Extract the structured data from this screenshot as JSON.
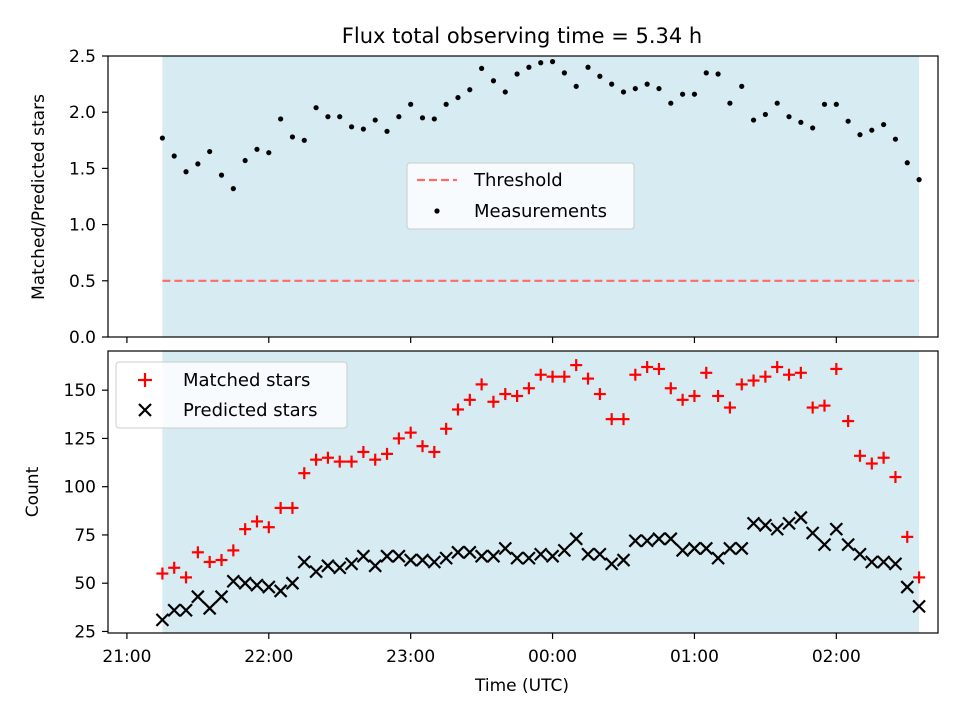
{
  "title": "Flux total observing time = 5.34 h",
  "colors": {
    "span": "#add8e6",
    "threshold": "#ff6b6b",
    "measurements": "#000000",
    "matched": "#ff0000",
    "predicted": "#000000"
  },
  "chart_data": [
    {
      "type": "scatter",
      "ylabel": "Matched/Predicted stars",
      "ylim": [
        0.0,
        2.5
      ],
      "yticks": [
        "0.0",
        "0.5",
        "1.0",
        "1.5",
        "2.0",
        "2.5"
      ],
      "threshold": 0.5,
      "legend_position": "center",
      "legend": [
        "Threshold",
        "Measurements"
      ],
      "series": [
        {
          "name": "Measurements",
          "x": [
            "21:15",
            "21:20",
            "21:25",
            "21:30",
            "21:35",
            "21:40",
            "21:45",
            "21:50",
            "21:55",
            "22:00",
            "22:05",
            "22:10",
            "22:15",
            "22:20",
            "22:25",
            "22:30",
            "22:35",
            "22:40",
            "22:45",
            "22:50",
            "22:55",
            "23:00",
            "23:05",
            "23:10",
            "23:15",
            "23:20",
            "23:25",
            "23:30",
            "23:35",
            "23:40",
            "23:45",
            "23:50",
            "23:55",
            "00:00",
            "00:05",
            "00:10",
            "00:15",
            "00:20",
            "00:25",
            "00:30",
            "00:35",
            "00:40",
            "00:45",
            "00:50",
            "00:55",
            "01:00",
            "01:05",
            "01:10",
            "01:15",
            "01:20",
            "01:25",
            "01:30",
            "01:35",
            "01:40",
            "01:45",
            "01:50",
            "01:55",
            "02:00",
            "02:05",
            "02:10",
            "02:15",
            "02:20",
            "02:25",
            "02:30",
            "02:35"
          ],
          "y": [
            1.77,
            1.61,
            1.47,
            1.54,
            1.65,
            1.44,
            1.32,
            1.57,
            1.67,
            1.64,
            1.94,
            1.78,
            1.75,
            2.04,
            1.96,
            1.96,
            1.87,
            1.85,
            1.93,
            1.83,
            1.96,
            2.07,
            1.95,
            1.94,
            2.07,
            2.13,
            2.2,
            2.39,
            2.28,
            2.18,
            2.34,
            2.4,
            2.44,
            2.45,
            2.35,
            2.23,
            2.4,
            2.32,
            2.25,
            2.18,
            2.21,
            2.25,
            2.21,
            2.08,
            2.16,
            2.16,
            2.35,
            2.34,
            2.08,
            2.23,
            1.93,
            1.98,
            2.08,
            1.96,
            1.91,
            1.86,
            2.07,
            2.07,
            1.92,
            1.8,
            1.84,
            1.89,
            1.76,
            1.55,
            1.4
          ]
        }
      ]
    },
    {
      "type": "scatter",
      "xlabel": "Time (UTC)",
      "ylabel": "Count",
      "ylim": [
        25,
        170
      ],
      "yticks": [
        "25",
        "50",
        "75",
        "100",
        "125",
        "150"
      ],
      "xticks": [
        "21:00",
        "22:00",
        "23:00",
        "00:00",
        "01:00",
        "02:00"
      ],
      "legend_position": "upper left",
      "legend": [
        "Matched stars",
        "Predicted stars"
      ],
      "observing_span": [
        "21:15",
        "02:35"
      ],
      "series": [
        {
          "name": "Matched stars",
          "x": [
            "21:15",
            "21:20",
            "21:25",
            "21:30",
            "21:35",
            "21:40",
            "21:45",
            "21:50",
            "21:55",
            "22:00",
            "22:05",
            "22:10",
            "22:15",
            "22:20",
            "22:25",
            "22:30",
            "22:35",
            "22:40",
            "22:45",
            "22:50",
            "22:55",
            "23:00",
            "23:05",
            "23:10",
            "23:15",
            "23:20",
            "23:25",
            "23:30",
            "23:35",
            "23:40",
            "23:45",
            "23:50",
            "23:55",
            "00:00",
            "00:05",
            "00:10",
            "00:15",
            "00:20",
            "00:25",
            "00:30",
            "00:35",
            "00:40",
            "00:45",
            "00:50",
            "00:55",
            "01:00",
            "01:05",
            "01:10",
            "01:15",
            "01:20",
            "01:25",
            "01:30",
            "01:35",
            "01:40",
            "01:45",
            "01:50",
            "01:55",
            "02:00",
            "02:05",
            "02:10",
            "02:15",
            "02:20",
            "02:25",
            "02:30",
            "02:35"
          ],
          "y": [
            55,
            58,
            53,
            66,
            61,
            62,
            67,
            78,
            82,
            79,
            89,
            89,
            107,
            114,
            115,
            113,
            113,
            118,
            114,
            117,
            125,
            128,
            121,
            118,
            130,
            140,
            145,
            153,
            144,
            148,
            147,
            151,
            158,
            157,
            157,
            163,
            156,
            148,
            135,
            135,
            158,
            162,
            161,
            151,
            145,
            147,
            159,
            147,
            141,
            153,
            155,
            157,
            162,
            158,
            159,
            141,
            142,
            161,
            134,
            116,
            112,
            115,
            105,
            74,
            53
          ]
        },
        {
          "name": "Predicted stars",
          "x": [
            "21:15",
            "21:20",
            "21:25",
            "21:30",
            "21:35",
            "21:40",
            "21:45",
            "21:50",
            "21:55",
            "22:00",
            "22:05",
            "22:10",
            "22:15",
            "22:20",
            "22:25",
            "22:30",
            "22:35",
            "22:40",
            "22:45",
            "22:50",
            "22:55",
            "23:00",
            "23:05",
            "23:10",
            "23:15",
            "23:20",
            "23:25",
            "23:30",
            "23:35",
            "23:40",
            "23:45",
            "23:50",
            "23:55",
            "00:00",
            "00:05",
            "00:10",
            "00:15",
            "00:20",
            "00:25",
            "00:30",
            "00:35",
            "00:40",
            "00:45",
            "00:50",
            "00:55",
            "01:00",
            "01:05",
            "01:10",
            "01:15",
            "01:20",
            "01:25",
            "01:30",
            "01:35",
            "01:40",
            "01:45",
            "01:50",
            "01:55",
            "02:00",
            "02:05",
            "02:10",
            "02:15",
            "02:20",
            "02:25",
            "02:30",
            "02:35"
          ],
          "y": [
            31,
            36,
            36,
            43,
            37,
            43,
            51,
            50,
            49,
            48,
            46,
            50,
            61,
            56,
            59,
            58,
            60,
            64,
            59,
            64,
            64,
            62,
            62,
            61,
            63,
            66,
            66,
            64,
            64,
            68,
            63,
            63,
            65,
            64,
            67,
            73,
            65,
            65,
            60,
            62,
            72,
            72,
            73,
            73,
            67,
            68,
            68,
            63,
            68,
            68,
            81,
            80,
            78,
            81,
            84,
            76,
            70,
            78,
            70,
            65,
            61,
            61,
            60,
            48,
            38
          ]
        }
      ]
    }
  ]
}
